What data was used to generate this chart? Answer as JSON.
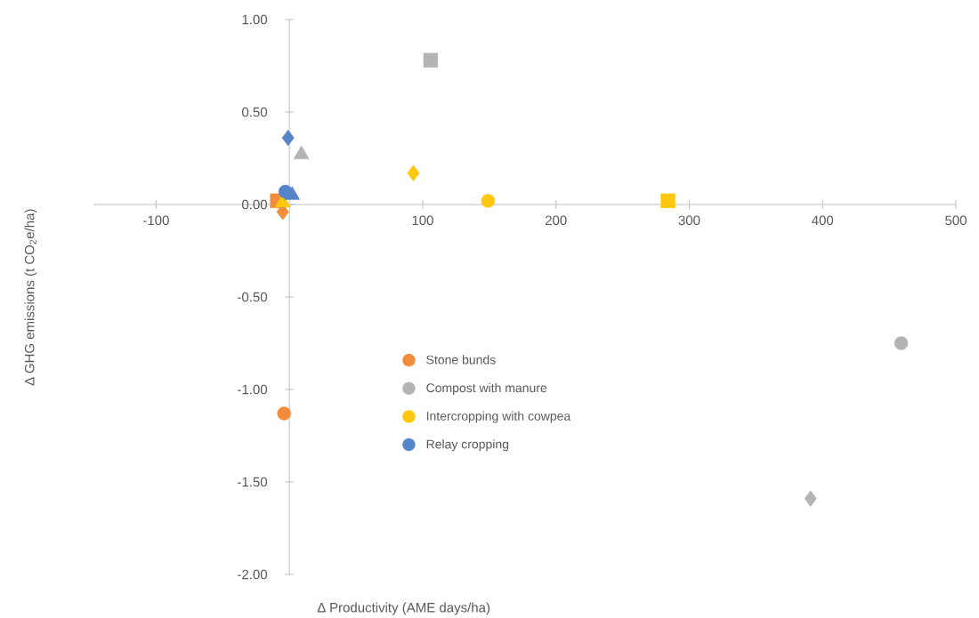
{
  "chart_data": {
    "type": "scatter",
    "xlabel": "∆ Productivity (AME days/ha)",
    "ylabel": "∆ GHG emissions (t CO$_{2}$e/ha)",
    "xlim": [
      -147,
      500
    ],
    "ylim": [
      -2,
      1
    ],
    "xticks": [
      -100,
      100,
      200,
      300,
      400,
      500
    ],
    "yticks": [
      {
        "value": 1,
        "label": "1.00"
      },
      {
        "value": 0.5,
        "label": "0.50"
      },
      {
        "value": 0,
        "label": "0.00"
      },
      {
        "value": -0.5,
        "label": "-0.50"
      },
      {
        "value": -1,
        "label": "-1.00"
      },
      {
        "value": -1.5,
        "label": "-1.50"
      },
      {
        "value": -2,
        "label": "-2.00"
      }
    ],
    "grid": false,
    "legend": "bottom",
    "series": [
      {
        "name": "Stone bunds",
        "color": "#f08c3c",
        "marker": "circle",
        "x": [
          -4
        ],
        "values": [
          -1.13
        ]
      },
      {
        "color": "#f08c3c",
        "marker": "square",
        "x": [
          -9
        ],
        "values": [
          0.02
        ]
      },
      {
        "color": "#f08c3c",
        "marker": "diamond",
        "x": [
          -5
        ],
        "values": [
          -0.04
        ]
      },
      {
        "name": "Compost with manure",
        "color": "#b4b4b4",
        "marker": "circle",
        "x": [
          459
        ],
        "values": [
          -0.75
        ]
      },
      {
        "color": "#b4b4b4",
        "marker": "square",
        "x": [
          106
        ],
        "values": [
          0.78
        ]
      },
      {
        "color": "#b4b4b4",
        "marker": "triangle",
        "x": [
          9
        ],
        "values": [
          0.27
        ]
      },
      {
        "color": "#b4b4b4",
        "marker": "diamond",
        "x": [
          391
        ],
        "values": [
          -1.59
        ]
      },
      {
        "name": "Intercropping with cowpea",
        "color": "#fec810",
        "marker": "circle",
        "x": [
          149
        ],
        "values": [
          0.02
        ]
      },
      {
        "color": "#fec810",
        "marker": "square",
        "x": [
          284
        ],
        "values": [
          0.02
        ]
      },
      {
        "color": "#fec810",
        "marker": "diamond",
        "x": [
          93
        ],
        "values": [
          0.17
        ]
      },
      {
        "color": "#fec810",
        "marker": "triangle",
        "x": [
          -5
        ],
        "values": [
          0.01
        ]
      },
      {
        "name": "Relay cropping",
        "color": "#5585c8",
        "marker": "circle",
        "x": [
          -3
        ],
        "values": [
          0.07
        ]
      },
      {
        "color": "#5585c8",
        "marker": "diamond",
        "x": [
          -1
        ],
        "values": [
          0.36
        ]
      },
      {
        "color": "#5585c8",
        "marker": "triangle",
        "x": [
          2
        ],
        "values": [
          0.05
        ]
      }
    ]
  }
}
